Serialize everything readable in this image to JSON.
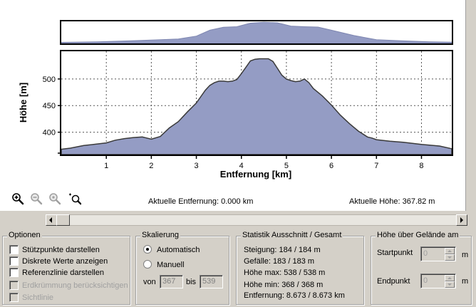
{
  "toolbar": {
    "zoom_in_icon": "zoom-in-icon",
    "zoom_out_icon": "zoom-out-icon",
    "zoom_reset_icon": "zoom-reset-icon",
    "zoom_select_icon": "zoom-select-icon",
    "current_distance": "Aktuelle Entfernung: 0.000 km",
    "current_height": "Aktuelle Höhe: 367.82 m"
  },
  "chart_data": [
    {
      "type": "area",
      "title": "",
      "xlabel": "",
      "ylabel": "",
      "xlim": [
        0,
        8.673
      ],
      "ylim": [
        358,
        545
      ],
      "grid": false,
      "legend": "none",
      "color": "#949cc4",
      "x": [
        0,
        0.8,
        1.5,
        2.1,
        2.6,
        3.0,
        3.3,
        3.6,
        3.9,
        4.2,
        4.5,
        4.8,
        5.1,
        5.4,
        5.7,
        6.0,
        6.5,
        7.0,
        7.6,
        8.2,
        8.673
      ],
      "y": [
        367,
        372,
        380,
        388,
        396,
        420,
        470,
        495,
        500,
        530,
        538,
        533,
        505,
        500,
        497,
        470,
        425,
        390,
        380,
        372,
        368
      ]
    },
    {
      "type": "area",
      "title": "",
      "xlabel": "Entfernung [km]",
      "ylabel": "Höhe [m]",
      "xlim": [
        0,
        8.673
      ],
      "ylim": [
        358,
        552
      ],
      "xticks": [
        "1",
        "2",
        "3",
        "4",
        "5",
        "6",
        "7",
        "8"
      ],
      "yticks": [
        "400",
        "450",
        "500"
      ],
      "grid": true,
      "legend": "none",
      "color": "#949cc4",
      "x": [
        0,
        0.2,
        0.5,
        0.8,
        1.0,
        1.2,
        1.4,
        1.6,
        1.8,
        1.9,
        2.0,
        2.2,
        2.4,
        2.6,
        2.8,
        3.0,
        3.1,
        3.2,
        3.3,
        3.4,
        3.5,
        3.6,
        3.7,
        3.8,
        3.9,
        4.0,
        4.1,
        4.2,
        4.3,
        4.4,
        4.6,
        4.7,
        4.8,
        4.9,
        5.0,
        5.1,
        5.2,
        5.3,
        5.4,
        5.5,
        5.6,
        5.8,
        6.0,
        6.2,
        6.4,
        6.6,
        6.8,
        6.9,
        7.0,
        7.3,
        7.6,
        8.0,
        8.4,
        8.673
      ],
      "y": [
        368,
        370,
        375,
        378,
        380,
        385,
        388,
        390,
        391,
        389,
        387,
        392,
        408,
        420,
        438,
        455,
        467,
        479,
        488,
        493,
        496,
        496,
        495,
        496,
        499,
        510,
        522,
        534,
        537,
        538,
        538,
        533,
        520,
        507,
        500,
        497,
        495,
        496,
        500,
        493,
        482,
        468,
        451,
        432,
        416,
        402,
        391,
        389,
        386,
        383,
        381,
        377,
        374,
        369
      ]
    }
  ],
  "scroll": {
    "left_icon": "arrow-left-icon",
    "right_icon": "arrow-right-icon"
  },
  "options": {
    "title": "Optionen",
    "items": [
      {
        "label": "Stützpunkte darstellen",
        "enabled": true
      },
      {
        "label": "Diskrete Werte anzeigen",
        "enabled": true
      },
      {
        "label": "Referenzlinie darstellen",
        "enabled": true
      },
      {
        "label": "Erdkrümmung berücksichtigen",
        "enabled": false
      },
      {
        "label": "Sichtlinie",
        "enabled": false
      }
    ]
  },
  "scaling": {
    "title": "Skalierung",
    "auto_label": "Automatisch",
    "manual_label": "Manuell",
    "from_label": "von",
    "from_value": "367",
    "to_label": "bis",
    "to_value": "539"
  },
  "stats": {
    "title": "Statistik  Ausschnitt / Gesamt",
    "rows": [
      "Steigung: 184 / 184 m",
      "Gefälle: 183 / 183 m",
      "Höhe max: 538 / 538 m",
      "Höhe min: 368 / 368 m",
      "Entfernung: 8.673 / 8.673 km"
    ]
  },
  "height_above": {
    "title": "Höhe über Gelände am",
    "start_label": "Startpunkt",
    "start_value": "0",
    "end_label": "Endpunkt",
    "end_value": "0",
    "unit": "m"
  }
}
